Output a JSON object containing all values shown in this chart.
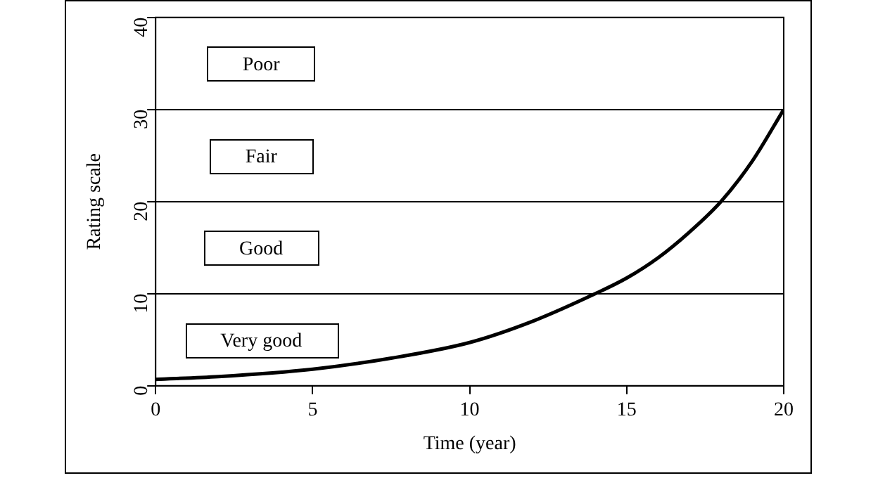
{
  "chart_data": {
    "type": "line",
    "xlabel": "Time (year)",
    "ylabel": "Rating scale",
    "x": [
      0,
      2,
      5,
      7.5,
      10,
      12,
      14,
      15,
      16,
      17,
      18,
      19,
      20
    ],
    "series": [
      {
        "color": "#000000",
        "values": [
          0.7,
          1.0,
          1.8,
          3,
          4.7,
          7,
          10,
          11.7,
          13.9,
          16.7,
          20,
          24.4,
          30
        ]
      }
    ],
    "xlim": [
      0,
      20
    ],
    "xticks": [
      0,
      5,
      10,
      15,
      20
    ],
    "ylim": [
      0,
      40
    ],
    "yticks": [
      0,
      10,
      20,
      30,
      40
    ],
    "grid": "y",
    "legend": false,
    "marker": "none",
    "line_style": "solid",
    "annotations": [
      "Poor",
      "Fair",
      "Good",
      "Very good"
    ]
  }
}
